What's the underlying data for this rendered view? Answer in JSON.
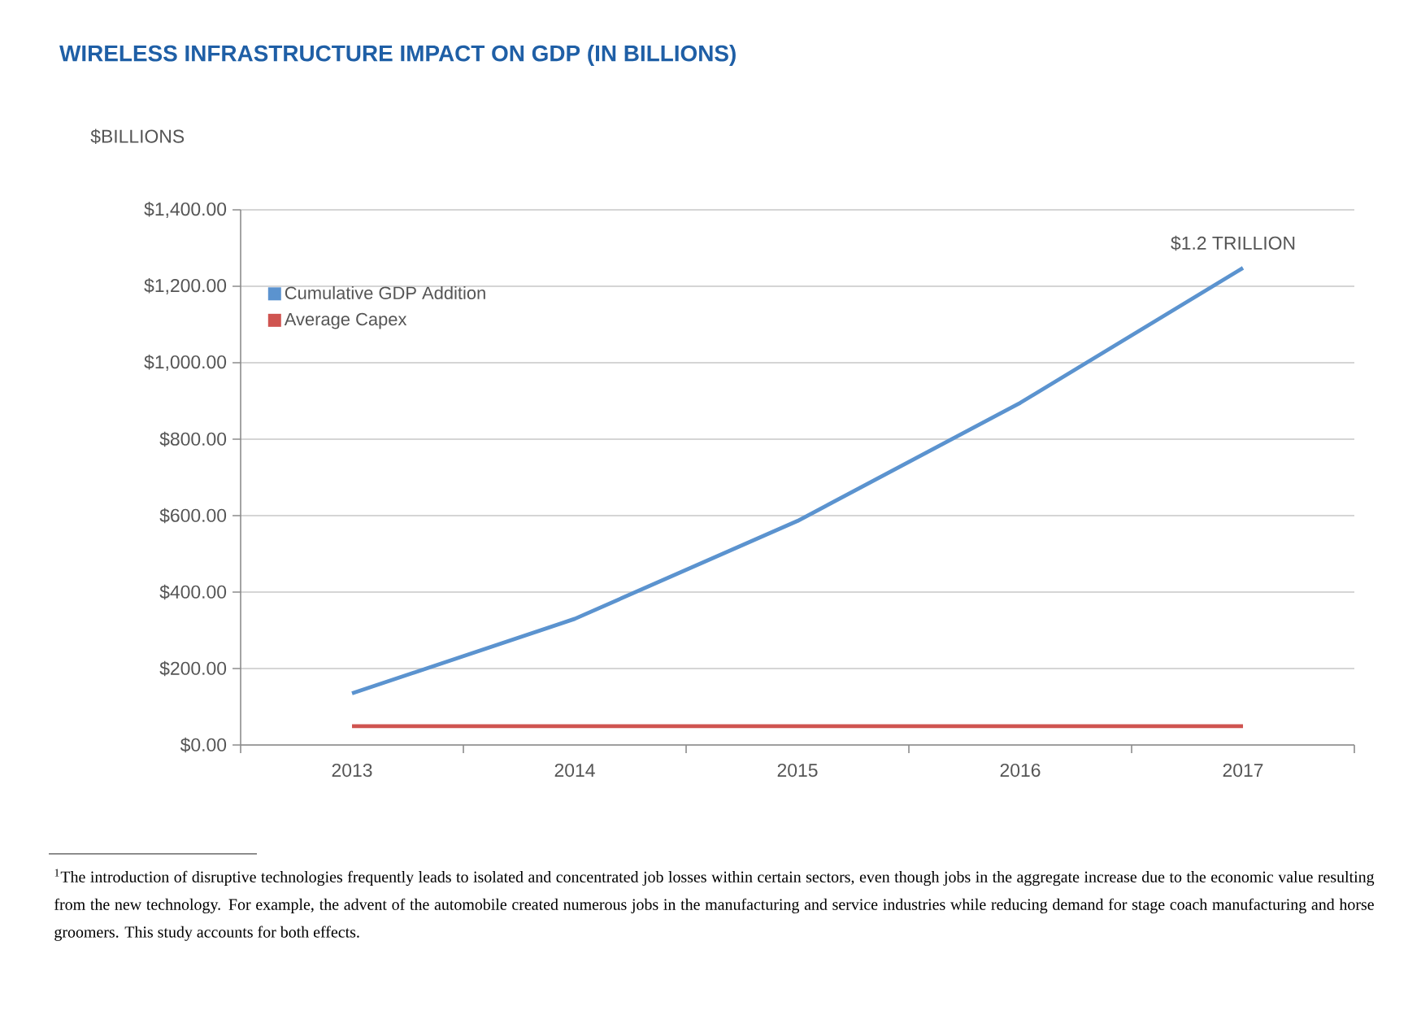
{
  "chart_data": {
    "type": "line",
    "title": "WIRELESS INFRASTRUCTURE IMPACT ON GDP (IN BILLIONS)",
    "ylabel": "$BILLIONS",
    "categories": [
      "2013",
      "2014",
      "2015",
      "2016",
      "2017"
    ],
    "series": [
      {
        "name": "Cumulative GDP Addition",
        "color": "#5b93cf",
        "values": [
          135,
          330,
          586,
          895,
          1248
        ]
      },
      {
        "name": "Average Capex",
        "color": "#cf5450",
        "values": [
          49,
          49,
          49,
          49,
          49
        ]
      }
    ],
    "ylim": [
      0,
      1400
    ],
    "yticks": [
      {
        "value": 0,
        "label": "$0.00"
      },
      {
        "value": 200,
        "label": "$200.00"
      },
      {
        "value": 400,
        "label": "$400.00"
      },
      {
        "value": 600,
        "label": "$600.00"
      },
      {
        "value": 800,
        "label": "$800.00"
      },
      {
        "value": 1000,
        "label": "$1,000.00"
      },
      {
        "value": 1200,
        "label": "$1,200.00"
      },
      {
        "value": 1400,
        "label": "$1,400.00"
      }
    ],
    "grid": "y",
    "legend": "top left",
    "annotations": [
      {
        "text": "$1.2 TRILLION",
        "x": "2017",
        "y": 1248
      },
      "$^{1}$The introduction of disruptive technologies frequently leads to isolated and concentrated job losses within certain sectors, even though jobs in the aggregate increase due to the economic value resulting from the new technology. For example, the advent of the automobile created numerous jobs in the manufacturing and service industries while reducing demand for stage coach manufacturing and horse groomers. This study accounts for both effects."
    ]
  }
}
